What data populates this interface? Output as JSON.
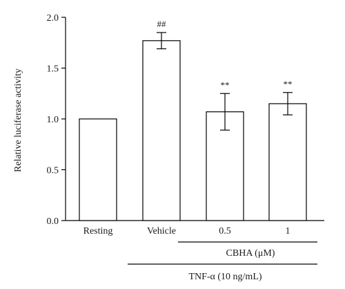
{
  "chart_data": {
    "type": "bar",
    "ylabel": "Relative luciferase activity",
    "ylim": [
      0,
      2.0
    ],
    "yticks": [
      0.0,
      0.5,
      1.0,
      1.5,
      2.0
    ],
    "ytick_labels": [
      "0.0",
      "0.5",
      "1.0",
      "1.5",
      "2.0"
    ],
    "categories": [
      "Resting",
      "Vehicle",
      "0.5",
      "1"
    ],
    "values": [
      1.0,
      1.77,
      1.07,
      1.15
    ],
    "errors": [
      0.0,
      0.08,
      0.18,
      0.11
    ],
    "annotations": [
      "",
      "##",
      "**",
      "**"
    ],
    "group_labels": [
      {
        "label": "CBHA (μM)",
        "spans": [
          "0.5",
          "1"
        ]
      },
      {
        "label": "TNF-α (10 ng/mL)",
        "spans": [
          "Vehicle",
          "0.5",
          "1"
        ]
      }
    ],
    "bar_color": "#ffffff",
    "edge_color": "#000000"
  }
}
